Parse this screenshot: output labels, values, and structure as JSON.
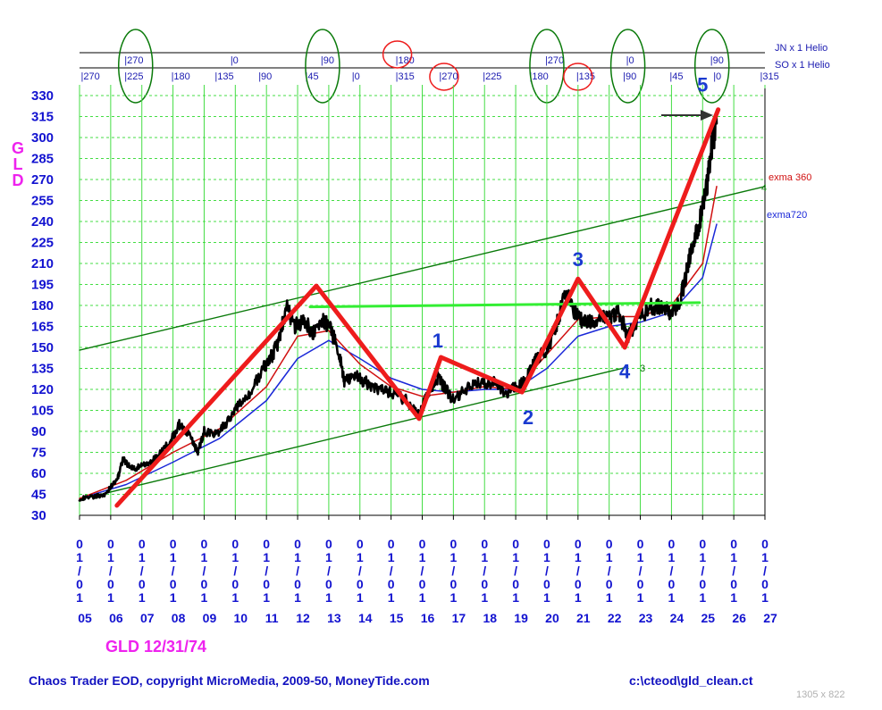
{
  "chart_data": {
    "type": "line",
    "symbol_label": "GLD",
    "date_label": "GLD 12/31/74",
    "y_ticks": [
      30,
      45,
      60,
      75,
      90,
      105,
      120,
      135,
      150,
      165,
      180,
      195,
      210,
      225,
      240,
      255,
      270,
      285,
      300,
      315,
      330
    ],
    "ylim": [
      30,
      330
    ],
    "x_date_prefix": "01/01",
    "x_years": [
      "05",
      "06",
      "07",
      "08",
      "09",
      "10",
      "11",
      "12",
      "13",
      "14",
      "15",
      "16",
      "17",
      "18",
      "19",
      "20",
      "21",
      "22",
      "23",
      "24",
      "25",
      "26",
      "27"
    ],
    "xlim": [
      2005,
      2027
    ],
    "price_series": {
      "x": [
        2005.0,
        2005.4,
        2005.8,
        2006.2,
        2006.4,
        2006.7,
        2007.0,
        2007.3,
        2007.6,
        2007.9,
        2008.2,
        2008.5,
        2008.8,
        2009.0,
        2009.4,
        2009.8,
        2010.1,
        2010.5,
        2010.9,
        2011.2,
        2011.4,
        2011.65,
        2011.9,
        2012.2,
        2012.5,
        2012.8,
        2013.0,
        2013.3,
        2013.5,
        2013.8,
        2014.2,
        2014.6,
        2015.0,
        2015.5,
        2015.9,
        2016.2,
        2016.5,
        2016.7,
        2017.0,
        2017.5,
        2017.9,
        2018.3,
        2018.7,
        2019.0,
        2019.3,
        2019.6,
        2020.0,
        2020.3,
        2020.6,
        2020.9,
        2021.2,
        2021.6,
        2022.0,
        2022.3,
        2022.6,
        2022.9,
        2023.3,
        2023.7,
        2024.0,
        2024.3,
        2024.6,
        2024.9,
        2025.1,
        2025.3,
        2025.45
      ],
      "y": [
        42,
        43,
        45,
        55,
        70,
        63,
        65,
        68,
        75,
        82,
        95,
        88,
        75,
        90,
        88,
        98,
        108,
        118,
        135,
        145,
        155,
        180,
        165,
        170,
        160,
        170,
        165,
        150,
        125,
        130,
        125,
        120,
        118,
        112,
        102,
        118,
        128,
        122,
        112,
        122,
        125,
        125,
        117,
        122,
        125,
        140,
        148,
        165,
        190,
        175,
        168,
        170,
        172,
        175,
        158,
        168,
        180,
        178,
        175,
        185,
        215,
        240,
        260,
        295,
        310
      ]
    },
    "exma360": {
      "x": [
        2005.0,
        2006.5,
        2008.0,
        2009.5,
        2011.0,
        2012.0,
        2013.0,
        2014.0,
        2015.0,
        2016.0,
        2017.0,
        2018.0,
        2019.0,
        2020.0,
        2021.0,
        2022.0,
        2023.0,
        2024.0,
        2025.0,
        2025.45
      ],
      "y": [
        42,
        55,
        75,
        92,
        122,
        158,
        162,
        138,
        122,
        115,
        118,
        122,
        120,
        145,
        170,
        172,
        172,
        180,
        210,
        265
      ]
    },
    "exma720": {
      "x": [
        2005.0,
        2006.5,
        2008.0,
        2009.5,
        2011.0,
        2012.0,
        2013.0,
        2014.0,
        2015.0,
        2016.0,
        2017.0,
        2018.0,
        2019.0,
        2020.0,
        2021.0,
        2022.0,
        2023.0,
        2024.0,
        2025.0,
        2025.45
      ],
      "y": [
        42,
        52,
        68,
        85,
        112,
        142,
        155,
        142,
        128,
        120,
        118,
        120,
        120,
        135,
        158,
        165,
        168,
        175,
        200,
        238
      ]
    },
    "zigzag": {
      "x": [
        2006.2,
        2012.6,
        2015.9,
        2016.6,
        2019.2,
        2021.0,
        2022.5,
        2025.5
      ],
      "y": [
        37,
        194,
        99,
        143,
        118,
        199,
        150,
        320
      ]
    },
    "channel_upper": {
      "x": [
        2005.0,
        2027.0
      ],
      "y": [
        148,
        265
      ]
    },
    "channel_lower": {
      "x": [
        2005.5,
        2022.6
      ],
      "y": [
        44,
        136
      ]
    },
    "horizontal_line": {
      "x": [
        2012.4,
        2024.9
      ],
      "y": [
        179,
        182
      ]
    },
    "wave_labels": [
      {
        "text": "1",
        "x": 2016.5,
        "y": 150
      },
      {
        "text": "2",
        "x": 2019.4,
        "y": 95
      },
      {
        "text": "3",
        "x": 2021.0,
        "y": 208
      },
      {
        "text": "4",
        "x": 2022.5,
        "y": 128
      },
      {
        "text": "5",
        "x": 2025.0,
        "y": 333
      }
    ],
    "annotations": {
      "exma360": "exma 360",
      "exma720": "exma720",
      "upper_channel_end": "4",
      "lower_channel_end": "3"
    },
    "cycles": {
      "jn_label": "JN x 1 Helio",
      "so_label": "SO x 1 Helio",
      "jn_ticks": [
        {
          "x": 2006.5,
          "text": "270"
        },
        {
          "x": 2009.9,
          "text": "0"
        },
        {
          "x": 2012.8,
          "text": "90"
        },
        {
          "x": 2015.2,
          "text": "180"
        },
        {
          "x": 2020.0,
          "text": "270"
        },
        {
          "x": 2022.6,
          "text": "0"
        },
        {
          "x": 2025.3,
          "text": "90"
        }
      ],
      "so_ticks": [
        {
          "x": 2005.1,
          "text": "270"
        },
        {
          "x": 2006.5,
          "text": "225"
        },
        {
          "x": 2008.0,
          "text": "180"
        },
        {
          "x": 2009.4,
          "text": "135"
        },
        {
          "x": 2010.8,
          "text": "90"
        },
        {
          "x": 2012.3,
          "text": "45"
        },
        {
          "x": 2013.8,
          "text": "0"
        },
        {
          "x": 2015.2,
          "text": "315"
        },
        {
          "x": 2016.6,
          "text": "270"
        },
        {
          "x": 2018.0,
          "text": "225"
        },
        {
          "x": 2019.5,
          "text": "180"
        },
        {
          "x": 2021.0,
          "text": "135"
        },
        {
          "x": 2022.5,
          "text": "90"
        },
        {
          "x": 2024.0,
          "text": "45"
        },
        {
          "x": 2025.4,
          "text": "0"
        },
        {
          "x": 2026.9,
          "text": "315"
        }
      ],
      "green_circles": [
        2006.8,
        2012.8,
        2020.0,
        2022.6,
        2025.3
      ],
      "red_circles": [
        2015.2,
        2016.7,
        2021.0
      ]
    },
    "colors": {
      "price": "#000000",
      "exma360": "#d01010",
      "exma720": "#1a28d8",
      "zigzag": "#ee1c1c",
      "channel": "#0a7a0a",
      "horizontal": "#33ee33",
      "grid": "#44dd44",
      "axis_text": "#1212d0",
      "symbol": "#ee22ee"
    }
  },
  "footer": {
    "left": "Chaos Trader EOD, copyright MicroMedia, 2009-50, MoneyTide.com",
    "right": "c:\\cteod\\gld_clean.ct",
    "size": "1305 x 822"
  }
}
